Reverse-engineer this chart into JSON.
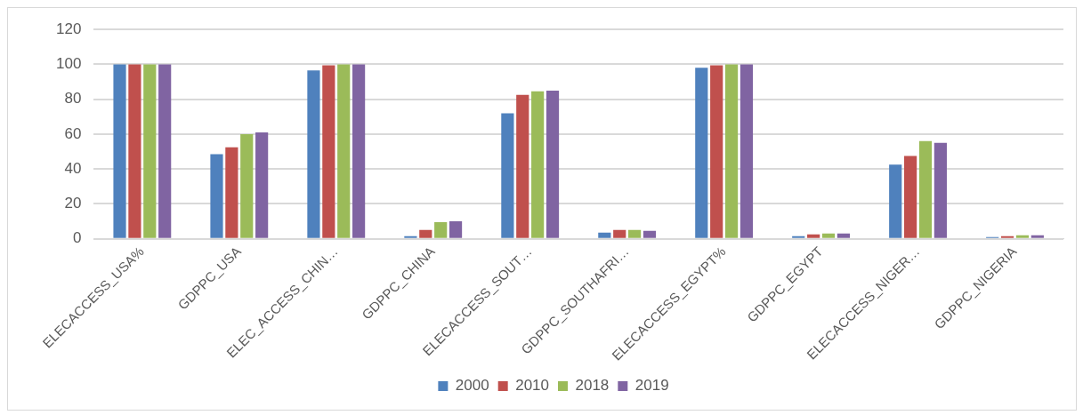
{
  "chart_data": {
    "type": "bar",
    "categories": [
      "ELECACCESS_USA%",
      "GDPPC_USA",
      "ELEC_ACCESS_CHIN…",
      "GDPPC_CHINA",
      "ELECACCESS_SOUT…",
      "GDPPC_SOUTHAFRI…",
      "ELECACCESS_EGYPT%",
      "GDPPC_EGYPT",
      "ELECACCESS_NIGER…",
      "GDPPC_NIGERIA"
    ],
    "series": [
      {
        "name": "2000",
        "color": "#4f81bd",
        "values": [
          100,
          48.5,
          96.5,
          1.5,
          72,
          3.5,
          98,
          1.5,
          42.5,
          1
        ]
      },
      {
        "name": "2010",
        "color": "#c0504d",
        "values": [
          100,
          52.5,
          99.5,
          5,
          82.5,
          5,
          99.5,
          2.5,
          47.5,
          1.5
        ]
      },
      {
        "name": "2018",
        "color": "#9bbb59",
        "values": [
          100,
          60,
          100,
          9.5,
          84.5,
          5,
          100,
          3,
          56,
          2
        ]
      },
      {
        "name": "2019",
        "color": "#8064a2",
        "values": [
          100,
          61,
          100,
          10,
          85,
          4.5,
          100,
          3,
          55,
          2
        ]
      }
    ],
    "ylim": [
      0,
      120
    ],
    "yticks": [
      0,
      20,
      40,
      60,
      80,
      100,
      120
    ],
    "grid": "y",
    "legend": "bottom"
  }
}
